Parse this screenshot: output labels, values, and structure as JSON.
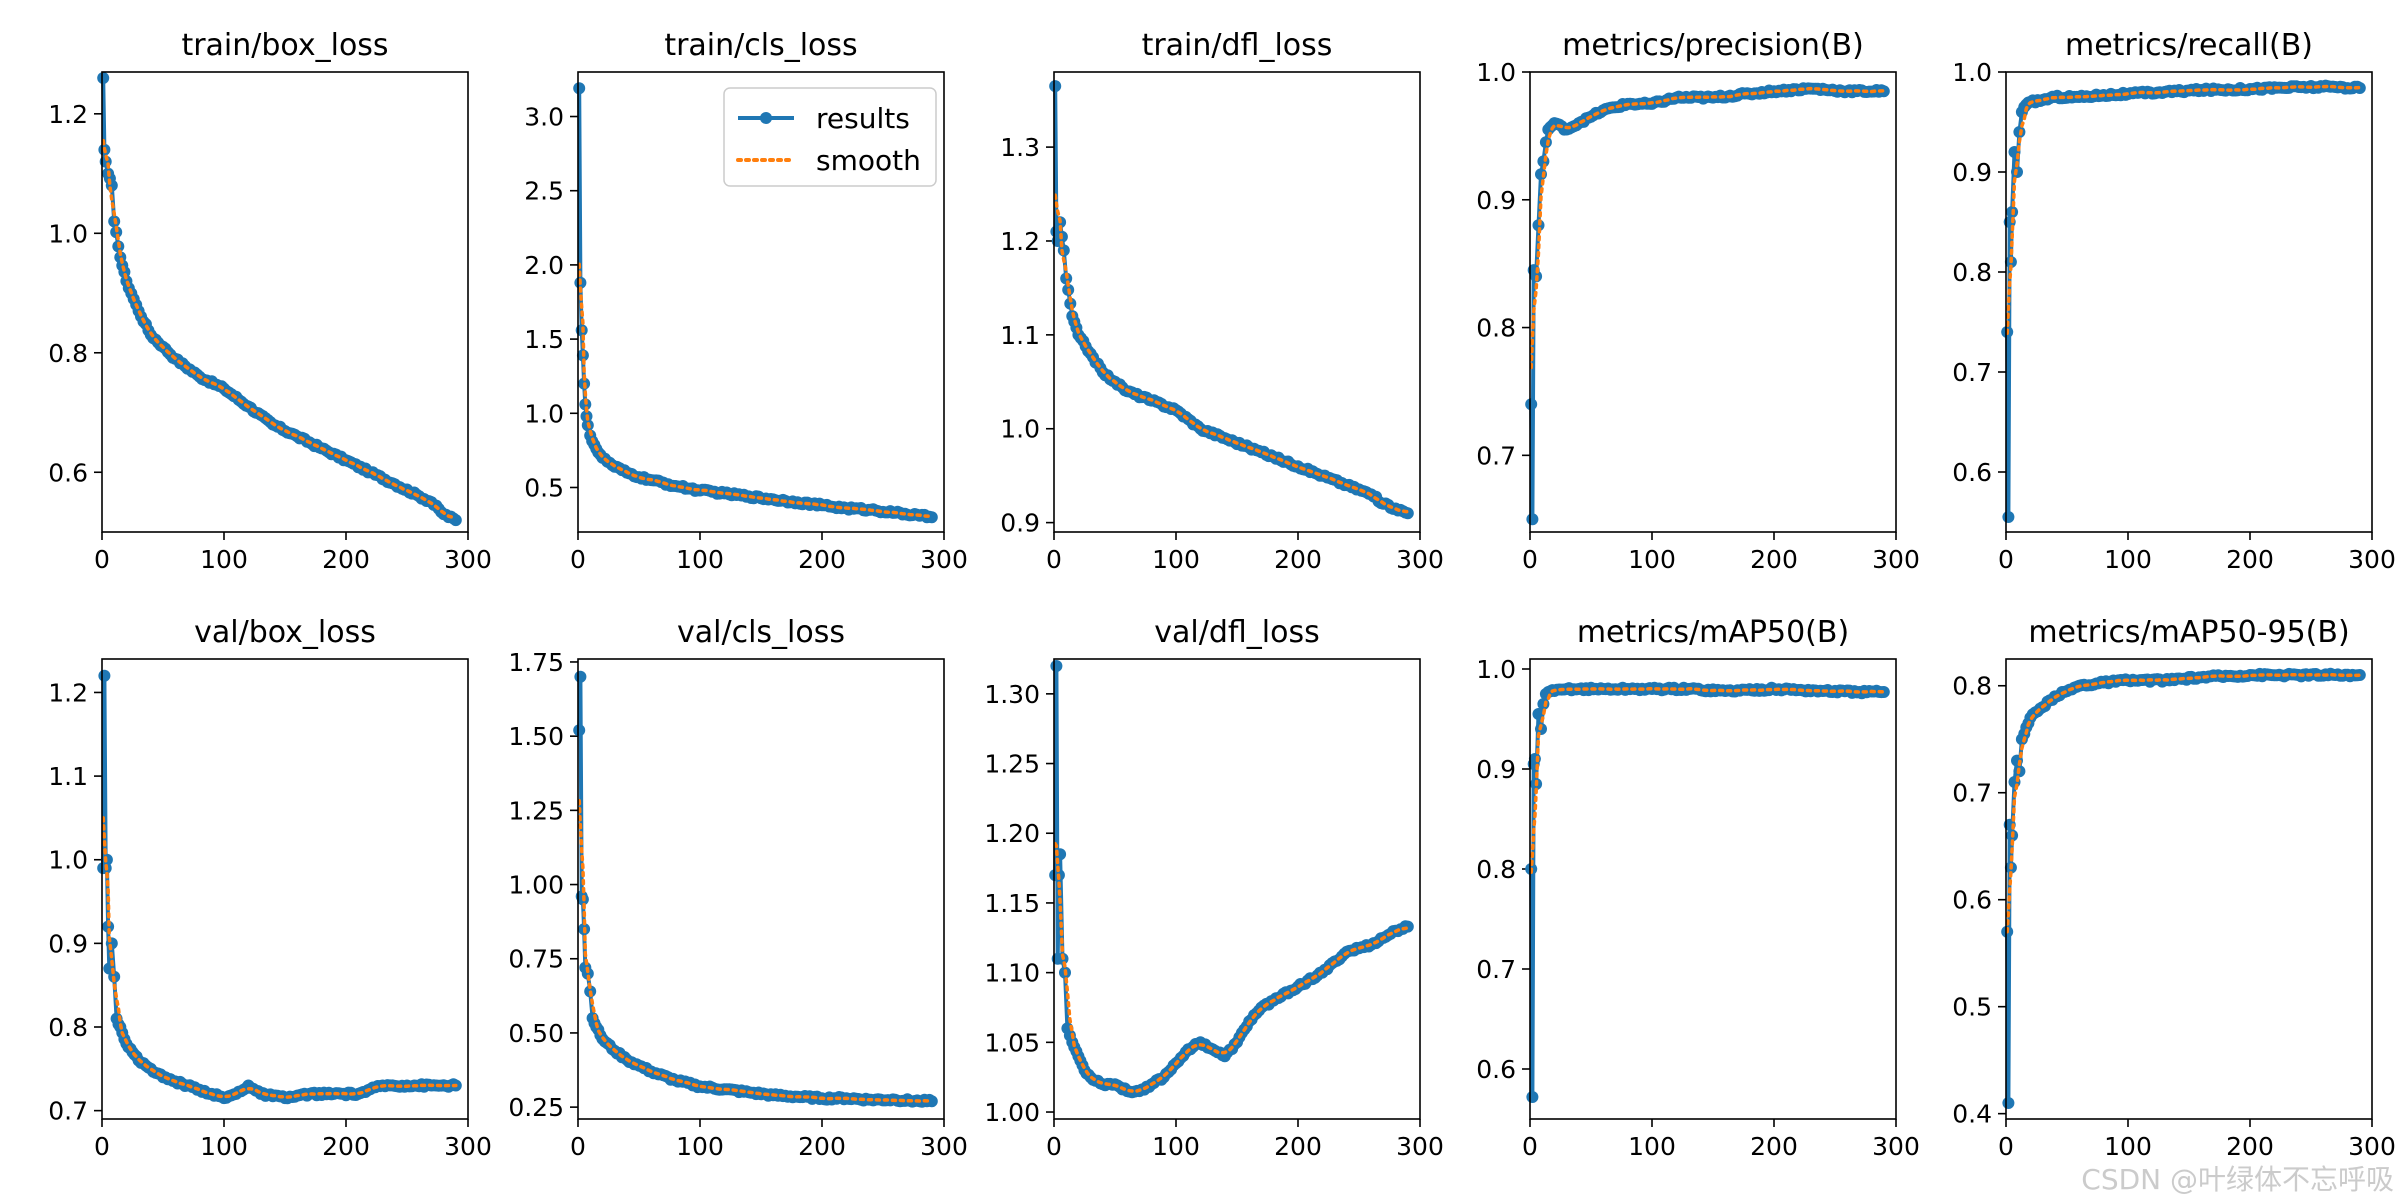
{
  "colors": {
    "results": "#1f77b4",
    "smooth": "#ff7f0e"
  },
  "watermark": "CSDN @叶绿体不忘呼吸",
  "chart_data": [
    {
      "type": "line",
      "title": "train/box_loss",
      "xlim": [
        0,
        300
      ],
      "ylim": [
        0.5,
        1.27
      ],
      "xticks": [
        0,
        100,
        200,
        300
      ],
      "yticks": [
        0.6,
        0.8,
        1.0,
        1.2
      ],
      "ytick_labels": [
        "0.6",
        "0.8",
        "1.0",
        "1.2"
      ],
      "series": [
        {
          "name": "results",
          "x": [
            1,
            2,
            3,
            5,
            8,
            10,
            15,
            20,
            30,
            40,
            50,
            60,
            80,
            100,
            120,
            140,
            160,
            180,
            200,
            220,
            240,
            260,
            270,
            280,
            290
          ],
          "values": [
            1.26,
            1.14,
            1.12,
            1.1,
            1.08,
            1.02,
            0.96,
            0.92,
            0.87,
            0.83,
            0.81,
            0.79,
            0.76,
            0.74,
            0.71,
            0.68,
            0.66,
            0.64,
            0.62,
            0.6,
            0.58,
            0.56,
            0.55,
            0.53,
            0.52
          ]
        }
      ]
    },
    {
      "type": "line",
      "title": "train/cls_loss",
      "xlim": [
        0,
        300
      ],
      "ylim": [
        0.2,
        3.3
      ],
      "xticks": [
        0,
        100,
        200,
        300
      ],
      "yticks": [
        0.5,
        1.0,
        1.5,
        2.0,
        2.5,
        3.0
      ],
      "ytick_labels": [
        "0.5",
        "1.0",
        "1.5",
        "2.0",
        "2.5",
        "3.0"
      ],
      "legend": {
        "location": "upper right",
        "entries": [
          "results",
          "smooth"
        ]
      },
      "series": [
        {
          "name": "results",
          "x": [
            1,
            2,
            3,
            4,
            5,
            6,
            7,
            8,
            10,
            15,
            20,
            30,
            40,
            50,
            60,
            80,
            100,
            120,
            140,
            160,
            180,
            200,
            220,
            240,
            260,
            280,
            290
          ],
          "values": [
            3.19,
            1.88,
            1.56,
            1.39,
            1.2,
            1.06,
            0.98,
            0.92,
            0.85,
            0.76,
            0.7,
            0.64,
            0.6,
            0.57,
            0.55,
            0.51,
            0.48,
            0.46,
            0.44,
            0.42,
            0.4,
            0.38,
            0.36,
            0.35,
            0.33,
            0.31,
            0.3
          ]
        }
      ]
    },
    {
      "type": "line",
      "title": "train/dfl_loss",
      "xlim": [
        0,
        300
      ],
      "ylim": [
        0.89,
        1.38
      ],
      "xticks": [
        0,
        100,
        200,
        300
      ],
      "yticks": [
        0.9,
        1.0,
        1.1,
        1.2,
        1.3
      ],
      "ytick_labels": [
        "0.9",
        "1.0",
        "1.1",
        "1.2",
        "1.3"
      ],
      "series": [
        {
          "name": "results",
          "x": [
            1,
            2,
            3,
            5,
            8,
            10,
            15,
            20,
            30,
            40,
            50,
            60,
            80,
            100,
            120,
            140,
            160,
            180,
            200,
            220,
            240,
            260,
            270,
            280,
            290
          ],
          "values": [
            1.365,
            1.21,
            1.2,
            1.22,
            1.19,
            1.16,
            1.12,
            1.1,
            1.08,
            1.06,
            1.05,
            1.04,
            1.03,
            1.02,
            1.0,
            0.99,
            0.98,
            0.97,
            0.96,
            0.95,
            0.94,
            0.93,
            0.92,
            0.915,
            0.91
          ]
        }
      ]
    },
    {
      "type": "line",
      "title": "metrics/precision(B)",
      "xlim": [
        0,
        300
      ],
      "ylim": [
        0.64,
        1.0
      ],
      "xticks": [
        0,
        100,
        200,
        300
      ],
      "yticks": [
        0.7,
        0.8,
        0.9,
        1.0
      ],
      "ytick_labels": [
        "0.7",
        "0.8",
        "0.9",
        "1.0"
      ],
      "series": [
        {
          "name": "results",
          "x": [
            1,
            2,
            3,
            5,
            7,
            9,
            11,
            13,
            15,
            20,
            30,
            40,
            50,
            60,
            80,
            100,
            120,
            150,
            180,
            200,
            230,
            260,
            290
          ],
          "values": [
            0.74,
            0.65,
            0.845,
            0.84,
            0.88,
            0.92,
            0.93,
            0.945,
            0.955,
            0.96,
            0.955,
            0.96,
            0.965,
            0.97,
            0.975,
            0.975,
            0.98,
            0.98,
            0.983,
            0.985,
            0.987,
            0.985,
            0.985
          ]
        }
      ]
    },
    {
      "type": "line",
      "title": "metrics/recall(B)",
      "xlim": [
        0,
        300
      ],
      "ylim": [
        0.54,
        1.0
      ],
      "xticks": [
        0,
        100,
        200,
        300
      ],
      "yticks": [
        0.6,
        0.7,
        0.8,
        0.9,
        1.0
      ],
      "ytick_labels": [
        "0.6",
        "0.7",
        "0.8",
        "0.9",
        "1.0"
      ],
      "series": [
        {
          "name": "results",
          "x": [
            1,
            2,
            3,
            4,
            5,
            7,
            9,
            11,
            13,
            15,
            20,
            30,
            40,
            60,
            80,
            100,
            130,
            160,
            200,
            240,
            270,
            290
          ],
          "values": [
            0.74,
            0.555,
            0.85,
            0.81,
            0.86,
            0.92,
            0.9,
            0.94,
            0.96,
            0.965,
            0.97,
            0.972,
            0.975,
            0.975,
            0.977,
            0.978,
            0.98,
            0.982,
            0.983,
            0.985,
            0.985,
            0.984
          ]
        }
      ]
    },
    {
      "type": "line",
      "title": "val/box_loss",
      "xlim": [
        0,
        300
      ],
      "ylim": [
        0.69,
        1.24
      ],
      "xticks": [
        0,
        100,
        200,
        300
      ],
      "yticks": [
        0.7,
        0.8,
        0.9,
        1.0,
        1.1,
        1.2
      ],
      "ytick_labels": [
        "0.7",
        "0.8",
        "0.9",
        "1.0",
        "1.1",
        "1.2"
      ],
      "series": [
        {
          "name": "results",
          "x": [
            1,
            2,
            3,
            4,
            5,
            6,
            8,
            10,
            12,
            15,
            20,
            25,
            30,
            40,
            50,
            60,
            70,
            80,
            90,
            100,
            110,
            120,
            130,
            150,
            170,
            190,
            210,
            230,
            250,
            270,
            290
          ],
          "values": [
            0.99,
            1.22,
            0.99,
            1.0,
            0.92,
            0.87,
            0.9,
            0.86,
            0.81,
            0.8,
            0.78,
            0.77,
            0.76,
            0.75,
            0.74,
            0.735,
            0.73,
            0.725,
            0.72,
            0.715,
            0.72,
            0.73,
            0.72,
            0.715,
            0.72,
            0.72,
            0.72,
            0.73,
            0.73,
            0.73,
            0.73
          ]
        }
      ]
    },
    {
      "type": "line",
      "title": "val/cls_loss",
      "xlim": [
        0,
        300
      ],
      "ylim": [
        0.21,
        1.76
      ],
      "xticks": [
        0,
        100,
        200,
        300
      ],
      "yticks": [
        0.25,
        0.5,
        0.75,
        1.0,
        1.25,
        1.5,
        1.75
      ],
      "ytick_labels": [
        "0.25",
        "0.50",
        "0.75",
        "1.00",
        "1.25",
        "1.50",
        "1.75"
      ],
      "series": [
        {
          "name": "results",
          "x": [
            1,
            2,
            3,
            4,
            5,
            6,
            8,
            10,
            12,
            15,
            20,
            30,
            40,
            50,
            60,
            80,
            100,
            120,
            140,
            160,
            180,
            200,
            220,
            240,
            260,
            280,
            290
          ],
          "values": [
            1.52,
            1.7,
            0.96,
            0.95,
            0.85,
            0.72,
            0.7,
            0.64,
            0.55,
            0.52,
            0.48,
            0.44,
            0.41,
            0.39,
            0.37,
            0.34,
            0.32,
            0.31,
            0.3,
            0.29,
            0.285,
            0.28,
            0.28,
            0.275,
            0.275,
            0.27,
            0.27
          ]
        }
      ]
    },
    {
      "type": "line",
      "title": "val/dfl_loss",
      "xlim": [
        0,
        300
      ],
      "ylim": [
        0.995,
        1.325
      ],
      "xticks": [
        0,
        100,
        200,
        300
      ],
      "yticks": [
        1.0,
        1.05,
        1.1,
        1.15,
        1.2,
        1.25,
        1.3
      ],
      "ytick_labels": [
        "1.00",
        "1.05",
        "1.10",
        "1.15",
        "1.20",
        "1.25",
        "1.30"
      ],
      "series": [
        {
          "name": "results",
          "x": [
            1,
            2,
            3,
            4,
            5,
            7,
            9,
            11,
            15,
            20,
            25,
            30,
            40,
            50,
            60,
            70,
            80,
            90,
            100,
            110,
            120,
            130,
            140,
            150,
            160,
            170,
            180,
            200,
            220,
            240,
            260,
            280,
            290
          ],
          "values": [
            1.17,
            1.32,
            1.11,
            1.17,
            1.185,
            1.11,
            1.1,
            1.06,
            1.05,
            1.04,
            1.03,
            1.025,
            1.02,
            1.02,
            1.015,
            1.015,
            1.02,
            1.025,
            1.035,
            1.045,
            1.05,
            1.045,
            1.04,
            1.05,
            1.065,
            1.075,
            1.08,
            1.09,
            1.1,
            1.115,
            1.12,
            1.13,
            1.133
          ]
        }
      ]
    },
    {
      "type": "line",
      "title": "metrics/mAP50(B)",
      "xlim": [
        0,
        300
      ],
      "ylim": [
        0.55,
        1.01
      ],
      "xticks": [
        0,
        100,
        200,
        300
      ],
      "yticks": [
        0.6,
        0.7,
        0.8,
        0.9,
        1.0
      ],
      "ytick_labels": [
        "0.6",
        "0.7",
        "0.8",
        "0.9",
        "1.0"
      ],
      "series": [
        {
          "name": "results",
          "x": [
            1,
            2,
            3,
            4,
            5,
            7,
            9,
            11,
            13,
            15,
            20,
            30,
            40,
            60,
            80,
            100,
            130,
            160,
            200,
            240,
            270,
            290
          ],
          "values": [
            0.8,
            0.572,
            0.905,
            0.91,
            0.885,
            0.955,
            0.94,
            0.965,
            0.975,
            0.977,
            0.978,
            0.98,
            0.98,
            0.98,
            0.98,
            0.98,
            0.98,
            0.978,
            0.98,
            0.978,
            0.977,
            0.977
          ]
        }
      ]
    },
    {
      "type": "line",
      "title": "metrics/mAP50-95(B)",
      "xlim": [
        0,
        300
      ],
      "ylim": [
        0.395,
        0.825
      ],
      "xticks": [
        0,
        100,
        200,
        300
      ],
      "yticks": [
        0.4,
        0.5,
        0.6,
        0.7,
        0.8
      ],
      "ytick_labels": [
        "0.4",
        "0.5",
        "0.6",
        "0.7",
        "0.8"
      ],
      "series": [
        {
          "name": "results",
          "x": [
            1,
            2,
            3,
            4,
            5,
            7,
            9,
            11,
            13,
            15,
            20,
            30,
            40,
            50,
            60,
            80,
            100,
            130,
            160,
            200,
            240,
            270,
            290
          ],
          "values": [
            0.57,
            0.41,
            0.67,
            0.63,
            0.66,
            0.71,
            0.73,
            0.72,
            0.75,
            0.755,
            0.77,
            0.78,
            0.79,
            0.795,
            0.8,
            0.803,
            0.805,
            0.805,
            0.808,
            0.81,
            0.81,
            0.81,
            0.81
          ]
        }
      ]
    }
  ]
}
